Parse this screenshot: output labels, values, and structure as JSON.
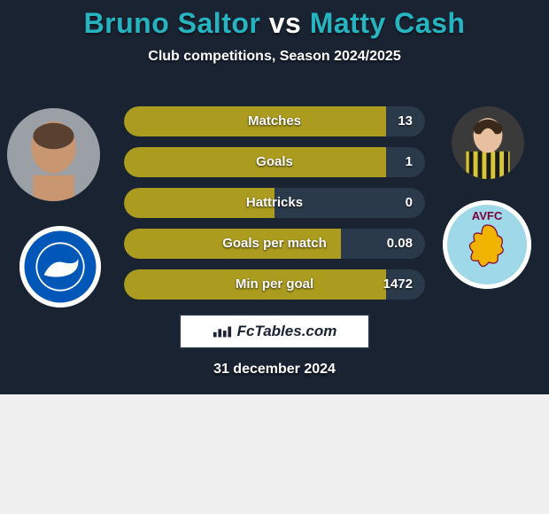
{
  "header": {
    "player1": "Bruno Saltor",
    "vs": "vs",
    "player2": "Matty Cash",
    "subtitle": "Club competitions, Season 2024/2025"
  },
  "colors": {
    "bg": "#1a2332",
    "accent_teal": "#26b5c0",
    "bar_track": "#2b3a4a",
    "bar_fill": "#ab9b1f",
    "white": "#ffffff",
    "club1_primary": "#0057b8",
    "club2_primary": "#7b003c",
    "club2_lion": "#f0b400"
  },
  "stats": [
    {
      "label": "Matches",
      "value": "13",
      "fill_pct": 87
    },
    {
      "label": "Goals",
      "value": "1",
      "fill_pct": 87
    },
    {
      "label": "Hattricks",
      "value": "0",
      "fill_pct": 50
    },
    {
      "label": "Goals per match",
      "value": "0.08",
      "fill_pct": 72
    },
    {
      "label": "Min per goal",
      "value": "1472",
      "fill_pct": 87
    }
  ],
  "brand": {
    "text": "FcTables.com"
  },
  "date": "31 december 2024",
  "avatars": {
    "p1_skin": "#c89670",
    "p1_bg": "#9aa0a6",
    "p2_skin": "#e8c0a0",
    "p2_shirt": "#d4c638",
    "p2_bg": "#3a3a3a"
  }
}
